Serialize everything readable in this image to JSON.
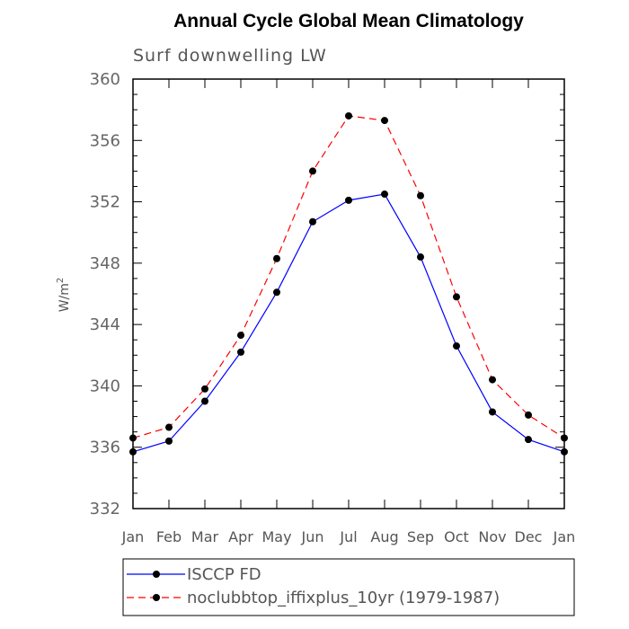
{
  "chart_data": {
    "type": "line",
    "title": "Annual Cycle Global Mean Climatology",
    "subtitle": "Surf downwelling LW",
    "ylabel": "W/m",
    "ylabel_sup": "2",
    "ylim": [
      332,
      360
    ],
    "yticks": [
      332,
      336,
      340,
      344,
      348,
      352,
      356,
      360
    ],
    "categories": [
      "Jan",
      "Feb",
      "Mar",
      "Apr",
      "May",
      "Jun",
      "Jul",
      "Aug",
      "Sep",
      "Oct",
      "Nov",
      "Dec",
      "Jan"
    ],
    "grid": false,
    "legend_placement": "bottom",
    "series": [
      {
        "name": "ISCCP FD",
        "color": "#0000ff",
        "dash": "solid",
        "values": [
          335.7,
          336.4,
          339.0,
          342.2,
          346.1,
          350.7,
          352.1,
          352.5,
          348.4,
          342.6,
          338.3,
          336.5,
          335.7
        ]
      },
      {
        "name": "noclubbtop_iffixplus_10yr (1979-1987)",
        "color": "#ff0000",
        "dash": "dashed",
        "values": [
          336.6,
          337.3,
          339.8,
          343.3,
          348.3,
          354.0,
          357.6,
          357.3,
          352.4,
          345.8,
          340.4,
          338.1,
          336.6
        ]
      }
    ]
  }
}
